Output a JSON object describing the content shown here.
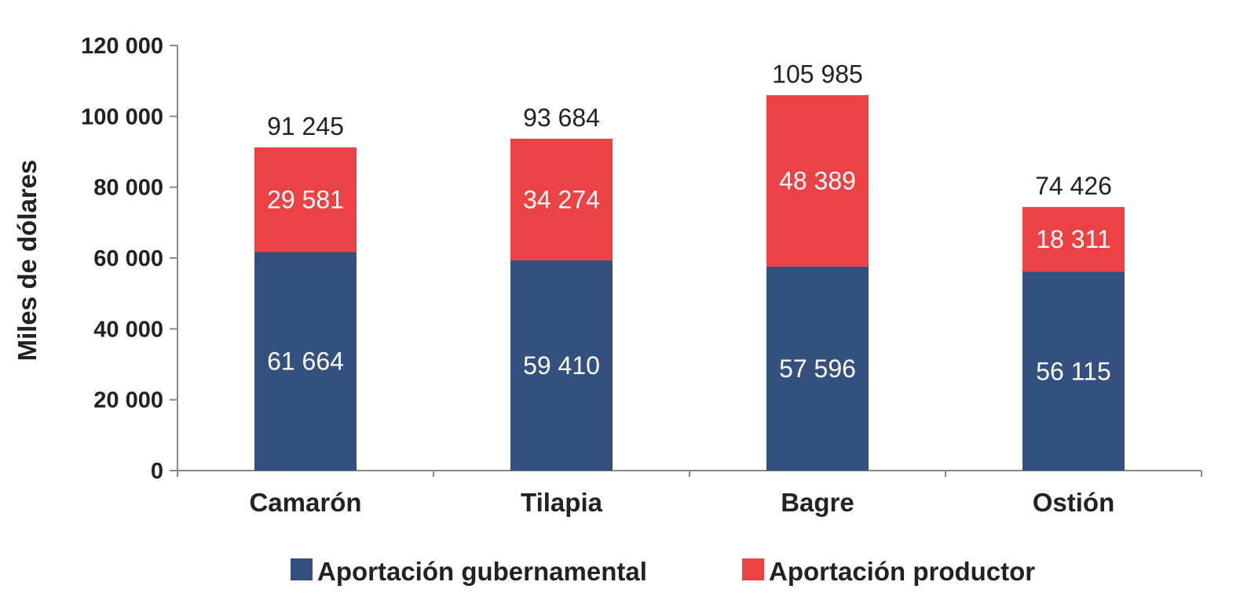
{
  "chart_data": {
    "type": "bar",
    "stacked": true,
    "title": "",
    "xlabel": "",
    "ylabel": "Miles de dólares",
    "ylim": [
      0,
      120000
    ],
    "yticks": [
      0,
      20000,
      40000,
      60000,
      80000,
      100000,
      120000
    ],
    "ytick_labels": [
      "0",
      "20 000",
      "40 000",
      "60 000",
      "80 000",
      "100 000",
      "120 000"
    ],
    "categories": [
      "Camarón",
      "Tilapia",
      "Bagre",
      "Ostión"
    ],
    "series": [
      {
        "name": "Aportación gubernamental",
        "color": "#34507f",
        "values": [
          61664,
          59410,
          57596,
          56115
        ],
        "labels": [
          "61 664",
          "59 410",
          "57 596",
          "56 115"
        ]
      },
      {
        "name": "Aportación productor",
        "color": "#ec4245",
        "values": [
          29581,
          34274,
          48389,
          18311
        ],
        "labels": [
          "29 581",
          "34 274",
          "48 389",
          "18 311"
        ]
      }
    ],
    "totals": [
      91245,
      93684,
      105985,
      74426
    ],
    "total_labels": [
      "91 245",
      "93 684",
      "105 985",
      "74 426"
    ],
    "legend_position": "bottom",
    "grid": false
  }
}
